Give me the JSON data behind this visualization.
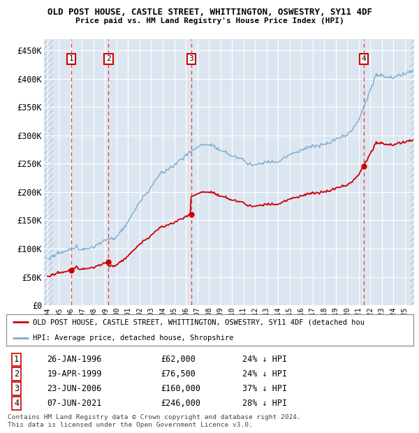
{
  "title": "OLD POST HOUSE, CASTLE STREET, WHITTINGTON, OSWESTRY, SY11 4DF",
  "subtitle": "Price paid vs. HM Land Registry's House Price Index (HPI)",
  "ylabel_ticks": [
    "£0",
    "£50K",
    "£100K",
    "£150K",
    "£200K",
    "£250K",
    "£300K",
    "£350K",
    "£400K",
    "£450K"
  ],
  "ytick_values": [
    0,
    50000,
    100000,
    150000,
    200000,
    250000,
    300000,
    350000,
    400000,
    450000
  ],
  "ylim": [
    0,
    470000
  ],
  "xlim_start": 1993.7,
  "xlim_end": 2025.8,
  "background_color": "#ffffff",
  "plot_bg_color": "#dce6f1",
  "hatch_color": "#b8c8dc",
  "grid_color": "#ffffff",
  "sale_dates": [
    1996.07,
    1999.3,
    2006.47,
    2021.44
  ],
  "sale_prices": [
    62000,
    76500,
    160000,
    246000
  ],
  "sale_labels": [
    "1",
    "2",
    "3",
    "4"
  ],
  "vline_color": "#ee3333",
  "marker_color": "#cc0000",
  "property_line_color": "#cc0000",
  "hpi_line_color": "#7aabcf",
  "legend_property_label": "OLD POST HOUSE, CASTLE STREET, WHITTINGTON, OSWESTRY, SY11 4DF (detached hou",
  "legend_hpi_label": "HPI: Average price, detached house, Shropshire",
  "table_data": [
    [
      "1",
      "26-JAN-1996",
      "£62,000",
      "24% ↓ HPI"
    ],
    [
      "2",
      "19-APR-1999",
      "£76,500",
      "24% ↓ HPI"
    ],
    [
      "3",
      "23-JUN-2006",
      "£160,000",
      "37% ↓ HPI"
    ],
    [
      "4",
      "07-JUN-2021",
      "£246,000",
      "28% ↓ HPI"
    ]
  ],
  "footer_text": "Contains HM Land Registry data © Crown copyright and database right 2024.\nThis data is licensed under the Open Government Licence v3.0.",
  "xtick_years": [
    1994,
    1995,
    1996,
    1997,
    1998,
    1999,
    2000,
    2001,
    2002,
    2003,
    2004,
    2005,
    2006,
    2007,
    2008,
    2009,
    2010,
    2011,
    2012,
    2013,
    2014,
    2015,
    2016,
    2017,
    2018,
    2019,
    2020,
    2021,
    2022,
    2023,
    2024,
    2025
  ],
  "hatch_left_end": 1994.5,
  "hatch_right_start": 2025.5
}
